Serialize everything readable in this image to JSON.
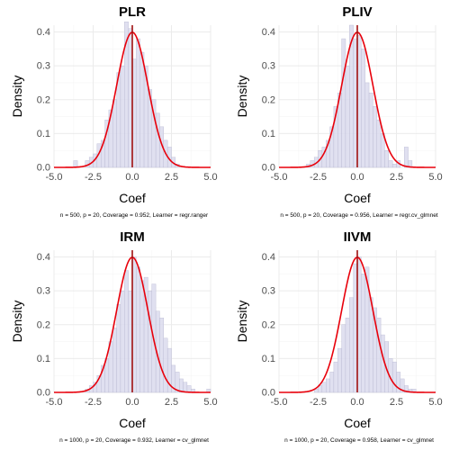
{
  "chart_data": [
    {
      "type": "histogram",
      "title": "PLR",
      "xlabel": "Coef",
      "ylabel": "Density",
      "caption": "n = 500, p = 20, Coverage = 0.952, Learner = regr.ranger",
      "xlim": [
        -5,
        5
      ],
      "ylim": [
        0,
        0.42
      ],
      "x_ticks": [
        -5.0,
        -2.5,
        0.0,
        2.5,
        5.0
      ],
      "y_ticks": [
        0.0,
        0.1,
        0.2,
        0.3,
        0.4
      ],
      "grid": true,
      "bin_width": 0.25,
      "bins_start": -3.75,
      "densities": [
        0.02,
        0.0,
        0.0,
        0.02,
        0.03,
        0.04,
        0.07,
        0.08,
        0.14,
        0.17,
        0.2,
        0.28,
        0.3,
        0.43,
        0.41,
        0.32,
        0.38,
        0.34,
        0.3,
        0.23,
        0.2,
        0.16,
        0.12,
        0.08,
        0.06,
        0.03,
        0.01
      ],
      "normal_curve": {
        "mean": 0,
        "sd": 1
      },
      "vline": 0
    },
    {
      "type": "histogram",
      "title": "PLIV",
      "xlabel": "Coef",
      "ylabel": "Density",
      "caption": "n = 500, p = 20, Coverage = 0.956, Learner = regr.cv_glmnet",
      "xlim": [
        -5,
        5
      ],
      "ylim": [
        0,
        0.42
      ],
      "x_ticks": [
        -5.0,
        -2.5,
        0.0,
        2.5,
        5.0
      ],
      "y_ticks": [
        0.0,
        0.1,
        0.2,
        0.3,
        0.4
      ],
      "grid": true,
      "bin_width": 0.25,
      "bins_start": -3.25,
      "densities": [
        0.01,
        0.02,
        0.03,
        0.05,
        0.06,
        0.08,
        0.12,
        0.18,
        0.22,
        0.38,
        0.3,
        0.42,
        0.38,
        0.39,
        0.35,
        0.25,
        0.22,
        0.18,
        0.14,
        0.1,
        0.05,
        0.02,
        0.01,
        0.02,
        0.0,
        0.06,
        0.02
      ],
      "normal_curve": {
        "mean": 0,
        "sd": 1
      },
      "vline": 0
    },
    {
      "type": "histogram",
      "title": "IRM",
      "xlabel": "Coef",
      "ylabel": "Density",
      "caption": "n = 1000, p = 20, Coverage = 0.932, Learner = cv_glmnet",
      "xlim": [
        -5,
        5
      ],
      "ylim": [
        0,
        0.42
      ],
      "x_ticks": [
        -5.0,
        -2.5,
        0.0,
        2.5,
        5.0
      ],
      "y_ticks": [
        0.0,
        0.1,
        0.2,
        0.3,
        0.4
      ],
      "grid": true,
      "bin_width": 0.25,
      "bins_start": -3.0,
      "densities": [
        0.01,
        0.02,
        0.03,
        0.05,
        0.08,
        0.1,
        0.15,
        0.19,
        0.26,
        0.3,
        0.36,
        0.3,
        0.4,
        0.37,
        0.33,
        0.34,
        0.3,
        0.32,
        0.24,
        0.22,
        0.16,
        0.13,
        0.08,
        0.06,
        0.04,
        0.03,
        0.02,
        0.01,
        0.0,
        0.0,
        0.0,
        0.01
      ],
      "normal_curve": {
        "mean": 0,
        "sd": 1
      },
      "vline": 0
    },
    {
      "type": "histogram",
      "title": "IIVM",
      "xlabel": "Coef",
      "ylabel": "Density",
      "caption": "n = 1000, p = 20, Coverage = 0.958, Learner = cv_glmnet",
      "xlim": [
        -5,
        5
      ],
      "ylim": [
        0,
        0.42
      ],
      "x_ticks": [
        -5.0,
        -2.5,
        0.0,
        2.5,
        5.0
      ],
      "y_ticks": [
        0.0,
        0.1,
        0.2,
        0.3,
        0.4
      ],
      "grid": true,
      "bin_width": 0.25,
      "bins_start": -3.0,
      "densities": [
        0.0,
        0.01,
        0.02,
        0.03,
        0.04,
        0.06,
        0.09,
        0.13,
        0.2,
        0.22,
        0.28,
        0.38,
        0.4,
        0.35,
        0.37,
        0.28,
        0.25,
        0.22,
        0.17,
        0.15,
        0.1,
        0.09,
        0.06,
        0.04,
        0.02,
        0.01,
        0.01
      ],
      "normal_curve": {
        "mean": 0,
        "sd": 1
      },
      "vline": 0
    }
  ],
  "colors": {
    "bar_fill": "#ddddee",
    "bar_stroke": "#b8b8d2",
    "curve": "#e8000b",
    "vline": "#a01010",
    "grid_major": "#ebebeb",
    "grid_minor": "#f5f5f5",
    "tick_text": "#4d4d4d"
  }
}
